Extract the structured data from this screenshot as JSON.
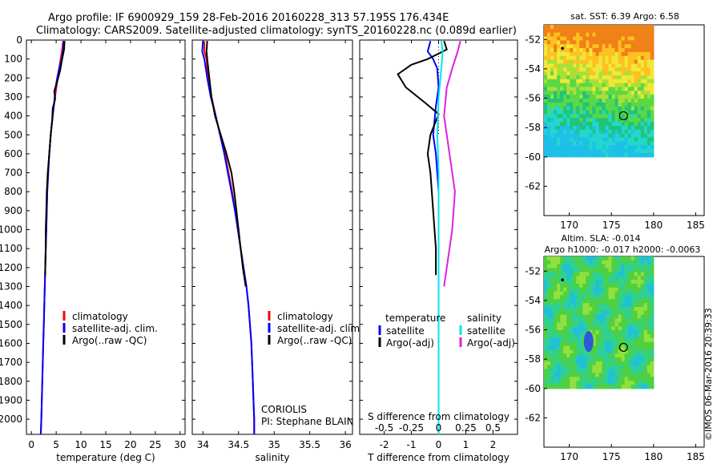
{
  "header": {
    "line1": "Argo profile: IF 6900929_159 28-Feb-2016 20160228_313 57.195S 176.434E",
    "line2": "Climatology: CARS2009. Satellite-adjusted climatology: synTS_20160228.nc (0.089d earlier)"
  },
  "footer_stamp": "©IMOS 06-Mar-2016 20:39:33",
  "depth_ticks": [
    0,
    100,
    200,
    300,
    400,
    500,
    600,
    700,
    800,
    900,
    1000,
    1100,
    1200,
    1300,
    1400,
    1500,
    1600,
    1700,
    1800,
    1900,
    2000
  ],
  "chart_data": [
    {
      "type": "line",
      "xlabel": "temperature (deg C)",
      "xlim": [
        -1,
        31
      ],
      "ylim": [
        2080,
        0
      ],
      "x_ticks": [
        0,
        5,
        10,
        15,
        20,
        25,
        30
      ],
      "legend": [
        "climatology",
        "satellite-adj. clim.",
        "Argo(..raw -QC)"
      ],
      "series": [
        {
          "name": "climatology",
          "color": "#ff0000",
          "points": [
            [
              6.4,
              5
            ],
            [
              6.2,
              50
            ],
            [
              5.9,
              100
            ],
            [
              5.6,
              150
            ],
            [
              5.3,
              200
            ],
            [
              5.0,
              260
            ],
            [
              4.6,
              330
            ],
            [
              4.3,
              400
            ],
            [
              3.9,
              500
            ],
            [
              3.6,
              600
            ],
            [
              3.4,
              700
            ],
            [
              3.2,
              800
            ],
            [
              3.1,
              900
            ],
            [
              3.0,
              1000
            ],
            [
              2.9,
              1100
            ],
            [
              2.8,
              1200
            ],
            [
              2.7,
              1300
            ],
            [
              2.6,
              1400
            ],
            [
              2.5,
              1500
            ],
            [
              2.4,
              1600
            ],
            [
              2.3,
              1700
            ],
            [
              2.2,
              1800
            ],
            [
              2.1,
              1900
            ],
            [
              2.0,
              2000
            ],
            [
              1.9,
              2080
            ]
          ]
        },
        {
          "name": "satellite-adj. clim.",
          "color": "#0000ff",
          "points": [
            [
              6.5,
              5
            ],
            [
              6.4,
              50
            ],
            [
              6.1,
              100
            ],
            [
              5.6,
              150
            ],
            [
              5.2,
              200
            ],
            [
              4.8,
              260
            ],
            [
              4.6,
              330
            ],
            [
              4.3,
              400
            ],
            [
              3.9,
              500
            ],
            [
              3.6,
              600
            ],
            [
              3.4,
              700
            ],
            [
              3.2,
              800
            ],
            [
              3.1,
              900
            ],
            [
              3.0,
              1000
            ],
            [
              2.9,
              1100
            ],
            [
              2.8,
              1200
            ],
            [
              2.7,
              1300
            ],
            [
              2.6,
              1400
            ],
            [
              2.5,
              1500
            ],
            [
              2.4,
              1600
            ],
            [
              2.3,
              1700
            ],
            [
              2.2,
              1800
            ],
            [
              2.1,
              1900
            ],
            [
              2.0,
              2000
            ],
            [
              1.9,
              2080
            ]
          ]
        },
        {
          "name": "Argo(..raw -QC)",
          "color": "#000000",
          "points": [
            [
              6.7,
              5
            ],
            [
              6.6,
              50
            ],
            [
              6.2,
              100
            ],
            [
              5.8,
              160
            ],
            [
              5.1,
              230
            ],
            [
              4.6,
              270
            ],
            [
              4.8,
              310
            ],
            [
              4.3,
              360
            ],
            [
              4.2,
              420
            ],
            [
              3.9,
              500
            ],
            [
              3.6,
              600
            ],
            [
              3.3,
              700
            ],
            [
              3.1,
              800
            ],
            [
              3.0,
              900
            ],
            [
              2.9,
              1000
            ],
            [
              2.9,
              1100
            ],
            [
              2.8,
              1200
            ],
            [
              2.8,
              1240
            ]
          ]
        }
      ]
    },
    {
      "type": "line",
      "xlabel": "salinity",
      "xlim": [
        33.85,
        36.1
      ],
      "ylim": [
        2080,
        0
      ],
      "x_ticks": [
        34,
        34.5,
        35,
        35.5,
        36
      ],
      "legend": [
        "climatology",
        "satellite-adj. clim.",
        "Argo(..raw -QC)"
      ],
      "annotations": [
        "CORIOLIS",
        "PI: Stephane BLAIN"
      ],
      "series": [
        {
          "name": "climatology",
          "color": "#ff0000",
          "points": [
            [
              34.02,
              5
            ],
            [
              34.02,
              60
            ],
            [
              34.05,
              100
            ],
            [
              34.07,
              200
            ],
            [
              34.12,
              300
            ],
            [
              34.18,
              400
            ],
            [
              34.24,
              500
            ],
            [
              34.31,
              600
            ],
            [
              34.36,
              700
            ],
            [
              34.41,
              800
            ],
            [
              34.45,
              900
            ],
            [
              34.49,
              1000
            ],
            [
              34.53,
              1100
            ],
            [
              34.57,
              1200
            ],
            [
              34.61,
              1300
            ],
            [
              34.64,
              1400
            ],
            [
              34.66,
              1500
            ],
            [
              34.68,
              1600
            ],
            [
              34.69,
              1700
            ],
            [
              34.7,
              1800
            ],
            [
              34.71,
              1900
            ],
            [
              34.72,
              2000
            ],
            [
              34.72,
              2080
            ]
          ]
        },
        {
          "name": "satellite-adj. clim.",
          "color": "#0000ff",
          "points": [
            [
              34.0,
              5
            ],
            [
              33.99,
              60
            ],
            [
              34.02,
              100
            ],
            [
              34.06,
              200
            ],
            [
              34.11,
              300
            ],
            [
              34.18,
              400
            ],
            [
              34.24,
              500
            ],
            [
              34.3,
              600
            ],
            [
              34.35,
              700
            ],
            [
              34.4,
              800
            ],
            [
              34.45,
              900
            ],
            [
              34.49,
              1000
            ],
            [
              34.53,
              1100
            ],
            [
              34.57,
              1200
            ],
            [
              34.61,
              1300
            ],
            [
              34.64,
              1400
            ],
            [
              34.66,
              1500
            ],
            [
              34.68,
              1600
            ],
            [
              34.69,
              1700
            ],
            [
              34.7,
              1800
            ],
            [
              34.71,
              1900
            ],
            [
              34.72,
              2000
            ],
            [
              34.72,
              2080
            ]
          ]
        },
        {
          "name": "Argo(..raw -QC)",
          "color": "#000000",
          "points": [
            [
              34.06,
              5
            ],
            [
              34.05,
              60
            ],
            [
              34.06,
              100
            ],
            [
              34.09,
              200
            ],
            [
              34.12,
              300
            ],
            [
              34.17,
              400
            ],
            [
              34.25,
              500
            ],
            [
              34.33,
              600
            ],
            [
              34.4,
              700
            ],
            [
              34.44,
              800
            ],
            [
              34.47,
              900
            ],
            [
              34.5,
              1000
            ],
            [
              34.53,
              1100
            ],
            [
              34.56,
              1200
            ],
            [
              34.6,
              1300
            ]
          ]
        }
      ]
    },
    {
      "type": "line",
      "xlabel": "T difference from climatology",
      "x2label": "S difference from climatology",
      "xlim": [
        -2.9,
        2.9
      ],
      "ylim": [
        2080,
        0
      ],
      "x_ticks": [
        -2,
        -1,
        0,
        1,
        2
      ],
      "x2_ticks": [
        -0.5,
        -0.25,
        0,
        0.25,
        0.5
      ],
      "legend_headers": [
        "temperature",
        "salinity"
      ],
      "legend": [
        "satellite",
        "Argo(-adj)",
        "satellite",
        "Argo(-adj)"
      ],
      "series": [
        {
          "name": "satellite",
          "color": "#0000ff",
          "points": [
            [
              -0.3,
              5
            ],
            [
              -0.4,
              60
            ],
            [
              -0.2,
              100
            ],
            [
              -0.05,
              150
            ],
            [
              0,
              250
            ],
            [
              -0.1,
              350
            ],
            [
              -0.2,
              500
            ],
            [
              -0.1,
              600
            ],
            [
              0,
              800
            ],
            [
              0,
              1000
            ],
            [
              0,
              1500
            ],
            [
              0,
              2000
            ],
            [
              0,
              2080
            ]
          ]
        },
        {
          "name": "Argo(-adj)",
          "color": "#000000",
          "points": [
            [
              0.2,
              5
            ],
            [
              0.3,
              50
            ],
            [
              -0.4,
              100
            ],
            [
              -1.0,
              130
            ],
            [
              -1.5,
              180
            ],
            [
              -1.2,
              250
            ],
            [
              -0.5,
              330
            ],
            [
              0,
              390
            ],
            [
              -0.3,
              500
            ],
            [
              -0.4,
              600
            ],
            [
              -0.3,
              700
            ],
            [
              -0.2,
              900
            ],
            [
              -0.1,
              1100
            ],
            [
              -0.1,
              1240
            ]
          ]
        },
        {
          "name": "satellite",
          "color": "#00e5ee",
          "points": [
            [
              0.1,
              5
            ],
            [
              0.15,
              60
            ],
            [
              0.1,
              150
            ],
            [
              0,
              300
            ],
            [
              -0.05,
              500
            ],
            [
              0,
              700
            ],
            [
              0,
              1000
            ],
            [
              0,
              1500
            ],
            [
              0,
              2000
            ],
            [
              0,
              2080
            ]
          ]
        },
        {
          "name": "Argo(-adj)",
          "color": "#e020e0",
          "points": [
            [
              0.8,
              5
            ],
            [
              0.7,
              60
            ],
            [
              0.5,
              150
            ],
            [
              0.3,
              250
            ],
            [
              0.2,
              400
            ],
            [
              0.4,
              600
            ],
            [
              0.6,
              800
            ],
            [
              0.5,
              1000
            ],
            [
              0.3,
              1200
            ],
            [
              0.2,
              1300
            ]
          ]
        }
      ]
    }
  ],
  "maps": [
    {
      "title": "sat. SST: 6.39 Argo: 6.58",
      "xlim": [
        167,
        186
      ],
      "ylim": [
        -64,
        -51
      ],
      "x_ticks": [
        170,
        175,
        180,
        185
      ],
      "y_ticks": [
        -52,
        -54,
        -56,
        -58,
        -60,
        -62
      ],
      "extent": {
        "lon": [
          167,
          180
        ],
        "lat": [
          -60,
          -51
        ]
      },
      "colors": [
        "#1ec0e8",
        "#22d8cc",
        "#20c47a",
        "#5ad846",
        "#a8e038",
        "#f0e838",
        "#ffc020",
        "#f08018"
      ],
      "marker": {
        "lon": 176.434,
        "lat": -57.195
      },
      "dot": {
        "lon": 169.2,
        "lat": -52.6
      }
    },
    {
      "title_line1": "Altim. SLA: -0.014",
      "title_line2": "Argo h1000: -0.017 h2000: -0.0063",
      "xlim": [
        167,
        186
      ],
      "ylim": [
        -64,
        -51
      ],
      "x_ticks": [
        170,
        175,
        180,
        185
      ],
      "y_ticks": [
        -52,
        -54,
        -56,
        -58,
        -60,
        -62
      ],
      "extent": {
        "lon": [
          167,
          180
        ],
        "lat": [
          -60,
          -51
        ]
      },
      "colors": [
        "#2a5ad8",
        "#20c0d8",
        "#30d090",
        "#50d040",
        "#90e040",
        "#d0ec40"
      ],
      "marker": {
        "lon": 176.434,
        "lat": -57.195
      },
      "dot": {
        "lon": 169.2,
        "lat": -52.6
      }
    }
  ]
}
